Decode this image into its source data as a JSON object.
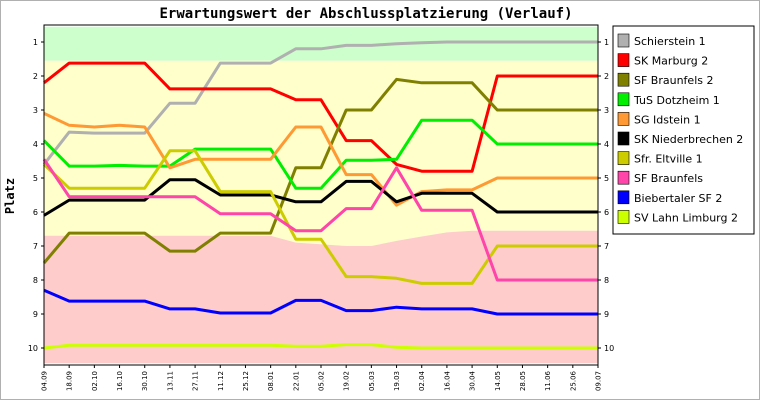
{
  "chart_data": {
    "type": "line",
    "title": "Erwartungswert der Abschlussplatzierung (Verlauf)",
    "ylabel": "Platz",
    "xlabel": "",
    "ylim": [
      1,
      10
    ],
    "y_inverted": true,
    "y_ticks": [
      "1",
      "2",
      "3",
      "4",
      "5",
      "6",
      "7",
      "8",
      "9",
      "10"
    ],
    "grid": false,
    "legend_position": "right",
    "categories": [
      "04.09",
      "18.09",
      "02.10",
      "16.10",
      "30.10",
      "13.11",
      "27.11",
      "11.12",
      "25.12",
      "08.01",
      "22.01",
      "05.02",
      "19.02",
      "05.03",
      "19.03",
      "02.04",
      "16.04",
      "30.04",
      "14.05",
      "28.05",
      "11.06",
      "25.06",
      "09.07"
    ],
    "zones": [
      {
        "color": "#ccffcc",
        "range": "promotion",
        "upper_boundary": [
          0.55,
          0.55,
          0.55,
          0.55,
          0.55,
          0.55,
          0.55,
          0.55,
          0.55,
          0.55,
          0.55,
          0.55,
          0.55,
          0.55,
          0.55,
          0.55,
          0.55,
          0.55,
          0.55,
          0.55,
          0.55,
          0.55,
          0.55
        ],
        "lower_boundary": [
          1.55,
          1.55,
          1.55,
          1.55,
          1.55,
          1.55,
          1.55,
          1.55,
          1.55,
          1.55,
          1.55,
          1.55,
          1.55,
          1.55,
          1.55,
          1.55,
          1.55,
          1.55,
          1.55,
          1.55,
          1.55,
          1.55,
          1.55
        ]
      },
      {
        "color": "#ffffcc",
        "range": "middle",
        "upper_boundary": [
          1.55,
          1.55,
          1.55,
          1.55,
          1.55,
          1.55,
          1.55,
          1.55,
          1.55,
          1.55,
          1.55,
          1.55,
          1.55,
          1.55,
          1.55,
          1.55,
          1.55,
          1.55,
          1.55,
          1.55,
          1.55,
          1.55,
          1.55
        ],
        "lower_boundary": [
          6.7,
          6.7,
          6.7,
          6.7,
          6.7,
          6.7,
          6.7,
          6.7,
          6.7,
          6.7,
          6.9,
          6.95,
          7.0,
          7.0,
          6.85,
          6.72,
          6.6,
          6.55,
          6.55,
          6.55,
          6.55,
          6.55,
          6.55
        ]
      },
      {
        "color": "#ffcccc",
        "range": "relegation",
        "upper_boundary": [
          6.7,
          6.7,
          6.7,
          6.7,
          6.7,
          6.7,
          6.7,
          6.7,
          6.7,
          6.7,
          6.9,
          6.95,
          7.0,
          7.0,
          6.85,
          6.72,
          6.6,
          6.55,
          6.55,
          6.55,
          6.55,
          6.55,
          6.55
        ],
        "lower_boundary": [
          10.45,
          10.45,
          10.45,
          10.45,
          10.45,
          10.45,
          10.45,
          10.45,
          10.45,
          10.45,
          10.45,
          10.45,
          10.45,
          10.45,
          10.45,
          10.45,
          10.45,
          10.45,
          10.45,
          10.45,
          10.45,
          10.45,
          10.45
        ]
      }
    ],
    "series": [
      {
        "name": "Schierstein 1",
        "color": "#b0b0b0",
        "values": [
          4.6,
          3.65,
          3.68,
          3.68,
          3.68,
          2.8,
          2.8,
          1.62,
          1.62,
          1.62,
          1.2,
          1.2,
          1.1,
          1.1,
          1.05,
          1.02,
          1.0,
          1.0,
          1.0,
          1.0,
          1.0,
          1.0,
          1.0
        ]
      },
      {
        "name": "SK Marburg 2",
        "color": "#ff0000",
        "values": [
          2.2,
          1.62,
          1.62,
          1.62,
          1.62,
          2.38,
          2.38,
          2.38,
          2.38,
          2.38,
          2.7,
          2.7,
          3.9,
          3.9,
          4.6,
          4.8,
          4.8,
          4.8,
          2.0,
          2.0,
          2.0,
          2.0,
          2.0
        ]
      },
      {
        "name": "SF Braunfels 2",
        "color": "#808000",
        "values": [
          7.5,
          6.62,
          6.62,
          6.62,
          6.62,
          7.15,
          7.15,
          6.62,
          6.62,
          6.62,
          4.7,
          4.7,
          3.0,
          3.0,
          2.1,
          2.2,
          2.2,
          2.2,
          3.0,
          3.0,
          3.0,
          3.0,
          3.0
        ]
      },
      {
        "name": "TuS Dotzheim 1",
        "color": "#00ee00",
        "values": [
          3.9,
          4.65,
          4.65,
          4.63,
          4.65,
          4.65,
          4.15,
          4.15,
          4.15,
          4.15,
          5.3,
          5.3,
          4.48,
          4.48,
          4.45,
          3.3,
          3.3,
          3.3,
          4.0,
          4.0,
          4.0,
          4.0,
          4.0
        ]
      },
      {
        "name": "SG Idstein 1",
        "color": "#ff9933",
        "values": [
          3.1,
          3.45,
          3.5,
          3.45,
          3.5,
          4.7,
          4.45,
          4.45,
          4.45,
          4.45,
          3.5,
          3.5,
          4.9,
          4.9,
          5.8,
          5.4,
          5.35,
          5.35,
          5.0,
          5.0,
          5.0,
          5.0,
          5.0
        ]
      },
      {
        "name": "SK Niederbrechen 2",
        "color": "#000000",
        "values": [
          6.1,
          5.65,
          5.65,
          5.65,
          5.65,
          5.05,
          5.05,
          5.5,
          5.5,
          5.5,
          5.7,
          5.7,
          5.1,
          5.1,
          5.7,
          5.45,
          5.45,
          5.45,
          6.0,
          6.0,
          6.0,
          6.0,
          6.0
        ]
      },
      {
        "name": "Sfr. Eltville 1",
        "color": "#cccc00",
        "values": [
          4.6,
          5.3,
          5.3,
          5.3,
          5.3,
          4.2,
          4.2,
          5.4,
          5.4,
          5.4,
          6.8,
          6.8,
          7.9,
          7.9,
          7.95,
          8.1,
          8.1,
          8.1,
          7.0,
          7.0,
          7.0,
          7.0,
          7.0
        ]
      },
      {
        "name": "SF Braunfels",
        "color": "#ff44aa",
        "values": [
          4.45,
          5.55,
          5.55,
          5.55,
          5.55,
          5.55,
          5.55,
          6.05,
          6.05,
          6.05,
          6.55,
          6.55,
          5.9,
          5.9,
          4.7,
          5.95,
          5.95,
          5.95,
          8.0,
          8.0,
          8.0,
          8.0,
          8.0
        ]
      },
      {
        "name": "Biebertaler SF 2",
        "color": "#0000ff",
        "values": [
          8.3,
          8.62,
          8.62,
          8.62,
          8.62,
          8.85,
          8.85,
          8.97,
          8.97,
          8.97,
          8.6,
          8.6,
          8.9,
          8.9,
          8.8,
          8.85,
          8.85,
          8.85,
          9.0,
          9.0,
          9.0,
          9.0,
          9.0
        ]
      },
      {
        "name": "SV Lahn Limburg 2",
        "color": "#ccff00",
        "values": [
          10.0,
          9.92,
          9.92,
          9.92,
          9.92,
          9.92,
          9.92,
          9.92,
          9.92,
          9.92,
          9.95,
          9.95,
          9.9,
          9.9,
          9.98,
          10.0,
          10.0,
          10.0,
          10.0,
          10.0,
          10.0,
          10.0,
          10.0
        ]
      }
    ]
  }
}
